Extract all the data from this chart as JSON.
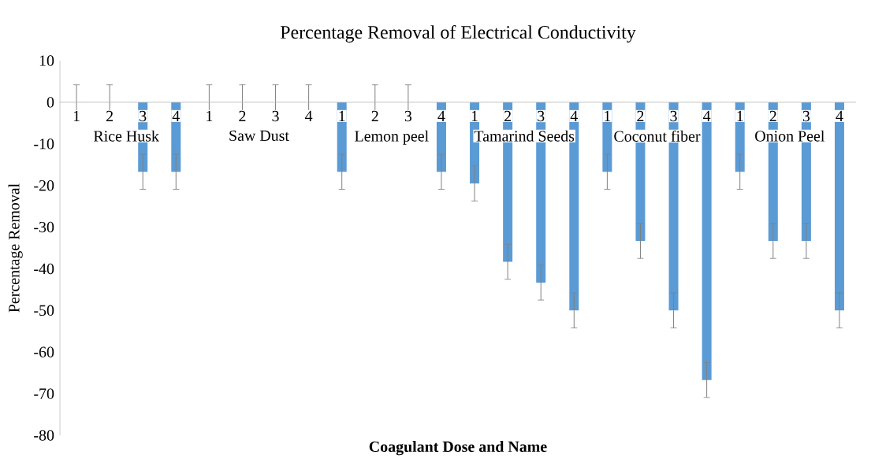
{
  "chart_data": {
    "type": "bar",
    "title": "Percentage Removal of Electrical Conductivity",
    "xlabel": "Coagulant Dose and Name",
    "ylabel": "Percentage Removal",
    "categories": [
      "1",
      "2",
      "3",
      "4",
      "1",
      "2",
      "3",
      "4",
      "1",
      "2",
      "3",
      "4",
      "1",
      "2",
      "3",
      "4",
      "1",
      "2",
      "3",
      "4",
      "1",
      "2",
      "3",
      "4"
    ],
    "values": [
      0,
      0,
      -16.7,
      -16.7,
      0,
      0,
      0,
      0,
      -16.7,
      0,
      0,
      -16.7,
      -19.5,
      -38.3,
      -43.3,
      -50,
      -16.7,
      -33.3,
      -50,
      -66.7,
      -16.7,
      -33.3,
      -33.3,
      -50
    ],
    "errors": [
      4.2,
      4.2,
      4.2,
      4.2,
      4.2,
      4.2,
      4.2,
      4.2,
      4.2,
      4.2,
      4.2,
      4.2,
      4.2,
      4.2,
      4.2,
      4.2,
      4.2,
      4.2,
      4.2,
      4.2,
      4.2,
      4.2,
      4.2,
      4.2
    ],
    "color": "#5b9bd5",
    "ylim": [
      -80,
      10
    ],
    "yticks": [
      -80,
      -70,
      -60,
      -50,
      -40,
      -30,
      -20,
      -10,
      0,
      10
    ],
    "annotations": [
      "Rice Husk",
      "Saw Dust",
      "Lemon peel",
      "Tamarind Seeds",
      "Coconut fiber",
      "Onion Peel"
    ]
  }
}
